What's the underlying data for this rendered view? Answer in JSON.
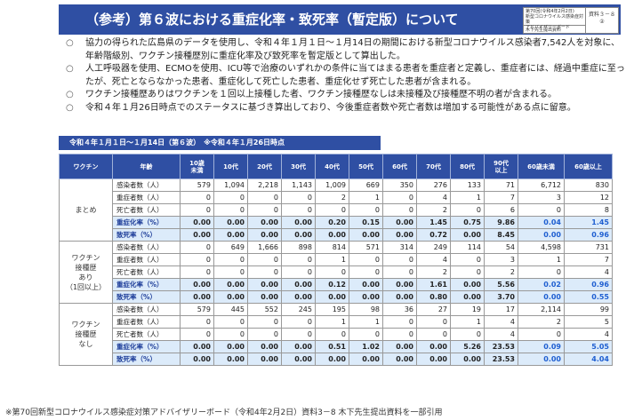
{
  "header": {
    "title": "（参考）第６波における重症化率・致死率（暫定版）について",
    "meta_line1": "第70回(令和4年2月2日)\n新型コロナウイルス感染症対策\nアドバイザリーボード",
    "meta_line2": "木下先生提出資料",
    "meta_right1": "資料３－８",
    "meta_right2": "②"
  },
  "bullets": [
    {
      "mark": "○",
      "text": "協力の得られた広島県のデータを使用し、令和４年１月１日～１月14日の期間における新型コロナウイルス感染者7,542人を対象に、年齢階級別、ワクチン接種歴別に重症化率及び致死率を暫定版として算出した。"
    },
    {
      "mark": "○",
      "text": "人工呼吸器を使用、ECMOを使用、ICU等で治療のいずれかの条件に当てはまる患者を重症者と定義し、重症者には、経過中重症に至ったが、死亡とならなかった患者、重症化して死亡した患者、重症化せず死亡した患者が含まれる。"
    },
    {
      "mark": "○",
      "text": "ワクチン接種歴ありはワクチンを１回以上接種した者、ワクチン接種歴なしは未接種及び接種歴不明の者が含まれる。"
    },
    {
      "mark": "○",
      "text": "令和４年１月26日時点でのステータスに基づき算出しており、今後重症者数や死亡者数は増加する可能性がある点に留意。"
    }
  ],
  "period_label": "令和４年１月１日～１月14日（第６波）　※令和４年１月26日時点",
  "table": {
    "headers": [
      "ワクチン",
      "年齢",
      "10歳\n未満",
      "10代",
      "20代",
      "30代",
      "40代",
      "50代",
      "60代",
      "70代",
      "80代",
      "90代\n以上",
      "60歳未満",
      "60歳以上"
    ],
    "groups": [
      {
        "label": "まとめ",
        "rows": [
          {
            "metric": "感染者数（人）",
            "type": "count",
            "values": [
              "579",
              "1,094",
              "2,218",
              "1,143",
              "1,009",
              "669",
              "350",
              "276",
              "133",
              "71",
              "6,712",
              "830"
            ]
          },
          {
            "metric": "重症者数（人）",
            "type": "count",
            "values": [
              "0",
              "0",
              "0",
              "0",
              "2",
              "1",
              "0",
              "4",
              "1",
              "7",
              "3",
              "12"
            ]
          },
          {
            "metric": "死亡者数（人）",
            "type": "count",
            "values": [
              "0",
              "0",
              "0",
              "0",
              "0",
              "0",
              "0",
              "2",
              "0",
              "6",
              "0",
              "8"
            ]
          },
          {
            "metric": "重症化率（%）",
            "type": "rate",
            "values": [
              "0.00",
              "0.00",
              "0.00",
              "0.00",
              "0.20",
              "0.15",
              "0.00",
              "1.45",
              "0.75",
              "9.86",
              "0.04",
              "1.45"
            ]
          },
          {
            "metric": "致死率（%）",
            "type": "rate",
            "values": [
              "0.00",
              "0.00",
              "0.00",
              "0.00",
              "0.00",
              "0.00",
              "0.00",
              "0.72",
              "0.00",
              "8.45",
              "0.00",
              "0.96"
            ]
          }
        ]
      },
      {
        "label": "ワクチン\n接種歴\nあり\n（1回以上）",
        "rows": [
          {
            "metric": "感染者数（人）",
            "type": "count",
            "values": [
              "0",
              "649",
              "1,666",
              "898",
              "814",
              "571",
              "314",
              "249",
              "114",
              "54",
              "4,598",
              "731"
            ]
          },
          {
            "metric": "重症者数（人）",
            "type": "count",
            "values": [
              "0",
              "0",
              "0",
              "0",
              "1",
              "0",
              "0",
              "4",
              "0",
              "3",
              "1",
              "7"
            ]
          },
          {
            "metric": "死亡者数（人）",
            "type": "count",
            "values": [
              "0",
              "0",
              "0",
              "0",
              "0",
              "0",
              "0",
              "2",
              "0",
              "2",
              "0",
              "4"
            ]
          },
          {
            "metric": "重症化率（%）",
            "type": "rate",
            "values": [
              "0.00",
              "0.00",
              "0.00",
              "0.00",
              "0.12",
              "0.00",
              "0.00",
              "1.61",
              "0.00",
              "5.56",
              "0.02",
              "0.96"
            ]
          },
          {
            "metric": "致死率（%）",
            "type": "rate",
            "values": [
              "0.00",
              "0.00",
              "0.00",
              "0.00",
              "0.00",
              "0.00",
              "0.00",
              "0.80",
              "0.00",
              "3.70",
              "0.00",
              "0.55"
            ]
          }
        ]
      },
      {
        "label": "ワクチン\n接種歴\nなし",
        "rows": [
          {
            "metric": "感染者数（人）",
            "type": "count",
            "values": [
              "579",
              "445",
              "552",
              "245",
              "195",
              "98",
              "36",
              "27",
              "19",
              "17",
              "2,114",
              "99"
            ]
          },
          {
            "metric": "重症者数（人）",
            "type": "count",
            "values": [
              "0",
              "0",
              "0",
              "0",
              "1",
              "1",
              "0",
              "0",
              "1",
              "4",
              "2",
              "5"
            ]
          },
          {
            "metric": "死亡者数（人）",
            "type": "count",
            "values": [
              "0",
              "0",
              "0",
              "0",
              "0",
              "0",
              "0",
              "0",
              "0",
              "4",
              "0",
              "4"
            ]
          },
          {
            "metric": "重症化率（%）",
            "type": "rate",
            "values": [
              "0.00",
              "0.00",
              "0.00",
              "0.00",
              "0.51",
              "1.02",
              "0.00",
              "0.00",
              "5.26",
              "23.53",
              "0.09",
              "5.05"
            ]
          },
          {
            "metric": "致死率（%）",
            "type": "rate",
            "values": [
              "0.00",
              "0.00",
              "0.00",
              "0.00",
              "0.00",
              "0.00",
              "0.00",
              "0.00",
              "0.00",
              "23.53",
              "0.00",
              "4.04"
            ]
          }
        ]
      }
    ]
  },
  "footnote": "※第70回新型コロナウイルス感染症対策アドバイザリーボード（令和4年2月2日）資料3－8 木下先生提出資料を一部引用",
  "colors": {
    "banner": "#2f4fa3",
    "rate_row": "#dcebfa",
    "highlight_text": "#1f5fd1"
  }
}
